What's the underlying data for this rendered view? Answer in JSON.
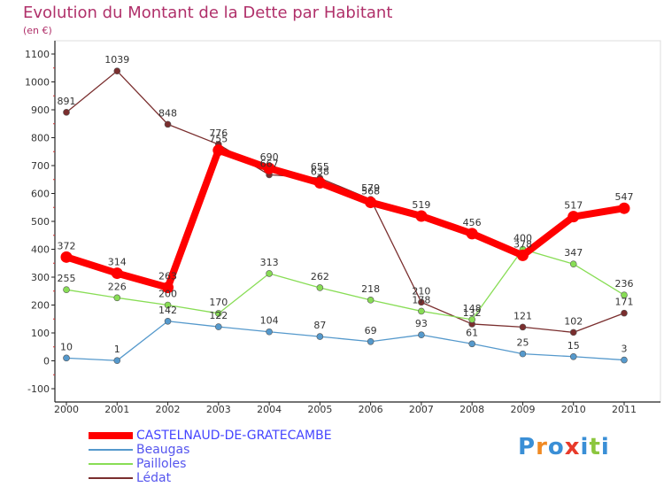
{
  "title": "Evolution du Montant de la Dette par Habitant",
  "subtitle": "(en €)",
  "logo": {
    "letters": [
      "P",
      "r",
      "o",
      "x",
      "i",
      "t",
      "i"
    ],
    "colors": [
      "#3a8fd6",
      "#f08a24",
      "#3a8fd6",
      "#e83a2a",
      "#3a8fd6",
      "#8cc63e",
      "#3a8fd6"
    ]
  },
  "chart_data": {
    "type": "line",
    "title": "Evolution du Montant de la Dette par Habitant",
    "ylabel": "(en €)",
    "xlabel": "",
    "x": [
      "2000",
      "2001",
      "2002",
      "2003",
      "2004",
      "2005",
      "2006",
      "2007",
      "2008",
      "2009",
      "2010",
      "2011"
    ],
    "ylim": [
      -100,
      1100
    ],
    "yticks": [
      -100,
      0,
      100,
      200,
      300,
      400,
      500,
      600,
      700,
      800,
      900,
      1000,
      1100
    ],
    "grid": false,
    "legend_position": "bottom-left",
    "series": [
      {
        "name": "CASTELNAUD-DE-GRATECAMBE",
        "color": "#ff0000",
        "values": [
          372,
          314,
          263,
          755,
          690,
          638,
          568,
          519,
          456,
          378,
          517,
          547
        ],
        "labels": [
          "372",
          "314",
          "263",
          "755",
          "690",
          "638",
          "568",
          "519",
          "456",
          "378",
          "517",
          "547"
        ]
      },
      {
        "name": "Beaugas",
        "color": "#5599cc",
        "values": [
          10,
          1,
          142,
          122,
          104,
          87,
          69,
          93,
          61,
          25,
          15,
          3
        ],
        "labels": [
          "10",
          "1",
          "142",
          "122",
          "104",
          "87",
          "69",
          "93",
          "61",
          "25",
          "15",
          "3"
        ]
      },
      {
        "name": "Pailloles",
        "color": "#88dd55",
        "values": [
          255,
          226,
          200,
          170,
          313,
          262,
          218,
          178,
          148,
          400,
          347,
          236
        ],
        "labels": [
          "255",
          "226",
          "200",
          "170",
          "313",
          "262",
          "218",
          "178",
          "148",
          "400",
          "347",
          "236"
        ]
      },
      {
        "name": "Lédat",
        "color": "#7a2e2e",
        "values": [
          891,
          1039,
          848,
          776,
          667,
          655,
          579,
          210,
          132,
          121,
          102,
          171
        ],
        "labels": [
          "891",
          "1039",
          "848",
          "776",
          "667",
          "655",
          "579",
          "210",
          "132",
          "121",
          "102",
          "171"
        ]
      }
    ]
  }
}
